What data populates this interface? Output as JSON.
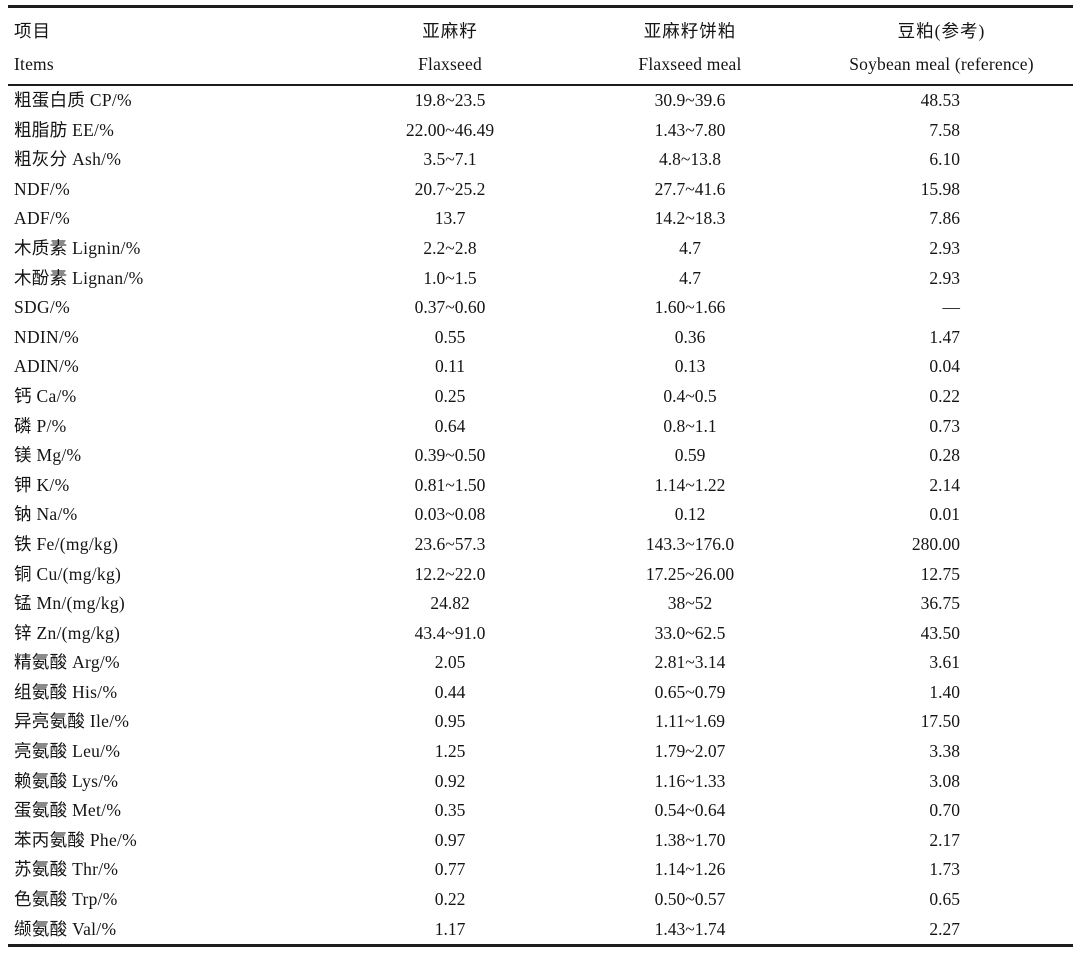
{
  "table": {
    "columns": [
      {
        "zh": "项目",
        "en": "Items"
      },
      {
        "zh": "亚麻籽",
        "en": "Flaxseed"
      },
      {
        "zh": "亚麻籽饼粕",
        "en": "Flaxseed meal"
      },
      {
        "zh": "豆粕(参考)",
        "en": "Soybean meal (reference)"
      }
    ],
    "rows": [
      {
        "item": "粗蛋白质 CP/%",
        "flaxseed": "19.8~23.5",
        "flaxseed_meal": "30.9~39.6",
        "soybean_meal": "48.53"
      },
      {
        "item": "粗脂肪 EE/%",
        "flaxseed": "22.00~46.49",
        "flaxseed_meal": "1.43~7.80",
        "soybean_meal": "7.58"
      },
      {
        "item": "粗灰分 Ash/%",
        "flaxseed": "3.5~7.1",
        "flaxseed_meal": "4.8~13.8",
        "soybean_meal": "6.10"
      },
      {
        "item": "NDF/%",
        "flaxseed": "20.7~25.2",
        "flaxseed_meal": "27.7~41.6",
        "soybean_meal": "15.98"
      },
      {
        "item": "ADF/%",
        "flaxseed": "13.7",
        "flaxseed_meal": "14.2~18.3",
        "soybean_meal": "7.86"
      },
      {
        "item": "木质素 Lignin/%",
        "flaxseed": "2.2~2.8",
        "flaxseed_meal": "4.7",
        "soybean_meal": "2.93"
      },
      {
        "item": "木酚素 Lignan/%",
        "flaxseed": "1.0~1.5",
        "flaxseed_meal": "4.7",
        "soybean_meal": "2.93"
      },
      {
        "item": "SDG/%",
        "flaxseed": "0.37~0.60",
        "flaxseed_meal": "1.60~1.66",
        "soybean_meal": "—"
      },
      {
        "item": "NDIN/%",
        "flaxseed": "0.55",
        "flaxseed_meal": "0.36",
        "soybean_meal": "1.47"
      },
      {
        "item": "ADIN/%",
        "flaxseed": "0.11",
        "flaxseed_meal": "0.13",
        "soybean_meal": "0.04"
      },
      {
        "item": "钙 Ca/%",
        "flaxseed": "0.25",
        "flaxseed_meal": "0.4~0.5",
        "soybean_meal": "0.22"
      },
      {
        "item": "磷 P/%",
        "flaxseed": "0.64",
        "flaxseed_meal": "0.8~1.1",
        "soybean_meal": "0.73"
      },
      {
        "item": "镁 Mg/%",
        "flaxseed": "0.39~0.50",
        "flaxseed_meal": "0.59",
        "soybean_meal": "0.28"
      },
      {
        "item": "钾 K/%",
        "flaxseed": "0.81~1.50",
        "flaxseed_meal": "1.14~1.22",
        "soybean_meal": "2.14"
      },
      {
        "item": "钠 Na/%",
        "flaxseed": "0.03~0.08",
        "flaxseed_meal": "0.12",
        "soybean_meal": "0.01"
      },
      {
        "item": "铁 Fe/(mg/kg)",
        "flaxseed": "23.6~57.3",
        "flaxseed_meal": "143.3~176.0",
        "soybean_meal": "280.00"
      },
      {
        "item": "铜 Cu/(mg/kg)",
        "flaxseed": "12.2~22.0",
        "flaxseed_meal": "17.25~26.00",
        "soybean_meal": "12.75"
      },
      {
        "item": "锰 Mn/(mg/kg)",
        "flaxseed": "24.82",
        "flaxseed_meal": "38~52",
        "soybean_meal": "36.75"
      },
      {
        "item": "锌 Zn/(mg/kg)",
        "flaxseed": "43.4~91.0",
        "flaxseed_meal": "33.0~62.5",
        "soybean_meal": "43.50"
      },
      {
        "item": "精氨酸 Arg/%",
        "flaxseed": "2.05",
        "flaxseed_meal": "2.81~3.14",
        "soybean_meal": "3.61"
      },
      {
        "item": "组氨酸 His/%",
        "flaxseed": "0.44",
        "flaxseed_meal": "0.65~0.79",
        "soybean_meal": "1.40"
      },
      {
        "item": "异亮氨酸 Ile/%",
        "flaxseed": "0.95",
        "flaxseed_meal": "1.11~1.69",
        "soybean_meal": "17.50"
      },
      {
        "item": "亮氨酸 Leu/%",
        "flaxseed": "1.25",
        "flaxseed_meal": "1.79~2.07",
        "soybean_meal": "3.38"
      },
      {
        "item": "赖氨酸 Lys/%",
        "flaxseed": "0.92",
        "flaxseed_meal": "1.16~1.33",
        "soybean_meal": "3.08"
      },
      {
        "item": "蛋氨酸 Met/%",
        "flaxseed": "0.35",
        "flaxseed_meal": "0.54~0.64",
        "soybean_meal": "0.70"
      },
      {
        "item": "苯丙氨酸 Phe/%",
        "flaxseed": "0.97",
        "flaxseed_meal": "1.38~1.70",
        "soybean_meal": "2.17"
      },
      {
        "item": "苏氨酸 Thr/%",
        "flaxseed": "0.77",
        "flaxseed_meal": "1.14~1.26",
        "soybean_meal": "1.73"
      },
      {
        "item": "色氨酸 Trp/%",
        "flaxseed": "0.22",
        "flaxseed_meal": "0.50~0.57",
        "soybean_meal": "0.65"
      },
      {
        "item": "缬氨酸 Val/%",
        "flaxseed": "1.17",
        "flaxseed_meal": "1.43~1.74",
        "soybean_meal": "2.27"
      }
    ]
  },
  "colors": {
    "text": "#141414",
    "rule": "#1c1c1c",
    "background": "#ffffff"
  }
}
